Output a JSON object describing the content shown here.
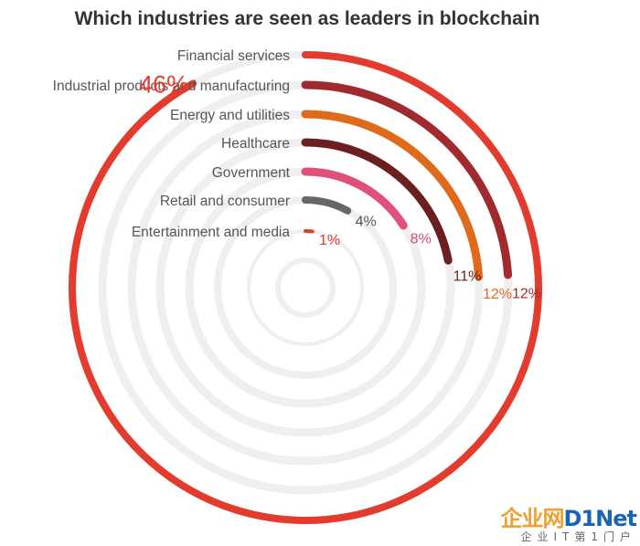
{
  "chart_data": {
    "type": "radial-bar",
    "title": "Which industries are seen as leaders in blockchain",
    "value_max": 50,
    "categories": [
      {
        "name": "Financial services",
        "value": 46,
        "label": "46%",
        "color": "#e33b2e",
        "label_color": "#e33b2e"
      },
      {
        "name": "Industrial products and manufacturing",
        "value": 12,
        "label": "12%",
        "color": "#a02a2e",
        "label_color": "#a02a2e"
      },
      {
        "name": "Energy and utilities",
        "value": 12,
        "label": "12%",
        "color": "#e06a1c",
        "label_color": "#e06a1c"
      },
      {
        "name": "Healthcare",
        "value": 11,
        "label": "11%",
        "color": "#6b1f1f",
        "label_color": "#6b1f1f"
      },
      {
        "name": "Government",
        "value": 8,
        "label": "8%",
        "color": "#e0507a",
        "label_color": "#d04a78"
      },
      {
        "name": "Retail and consumer",
        "value": 4,
        "label": "4%",
        "color": "#666666",
        "label_color": "#555555"
      },
      {
        "name": "Entertainment and media",
        "value": 1,
        "label": "1%",
        "color": "#e33b2e",
        "label_color": "#e33b2e"
      }
    ],
    "track_color": "#efefef",
    "highlight_label_color": "#e33b2e"
  },
  "watermark": {
    "main_a": "企业网",
    "main_b": "D1Net",
    "sub": "企业IT第1门户"
  }
}
